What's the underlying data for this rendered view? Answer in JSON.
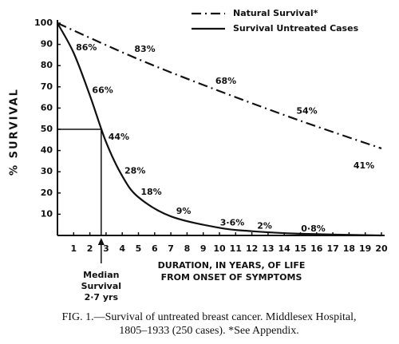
{
  "chart_data": {
    "type": "line",
    "ylabel": "% SURVIVAL",
    "xlabel": [
      "DURATION, IN YEARS, OF LIFE",
      "FROM ONSET OF SYMPTOMS"
    ],
    "caption": [
      "FIG. 1.—Survival of untreated breast cancer. Middlesex Hospital,",
      "1805–1933 (250 cases).  *See Appendix."
    ],
    "xlim": [
      0,
      20
    ],
    "xticks": [
      1,
      2,
      3,
      4,
      5,
      6,
      7,
      8,
      9,
      10,
      11,
      12,
      13,
      14,
      15,
      16,
      17,
      18,
      19,
      20
    ],
    "ylim": [
      0,
      100
    ],
    "yticks": [
      10,
      20,
      30,
      40,
      50,
      60,
      70,
      80,
      90,
      100
    ],
    "grid": false,
    "legend": "upper right",
    "series": [
      {
        "name": "Natural Survival*",
        "color": "#111111",
        "style": "dash-dot",
        "x": [
          0,
          5,
          10,
          15,
          20
        ],
        "values": [
          100,
          83,
          68,
          54,
          41
        ],
        "value_labels": [
          null,
          "83%",
          "68%",
          "54%",
          "41%"
        ]
      },
      {
        "name": "Survival Untreated Cases",
        "color": "#111111",
        "style": "solid",
        "x": [
          0,
          1,
          2,
          3,
          4,
          5,
          7,
          10,
          12,
          15,
          20
        ],
        "values": [
          100,
          86,
          66,
          44,
          28,
          18,
          9,
          3.6,
          2,
          0.8,
          0
        ],
        "value_labels": [
          null,
          "86%",
          "66%",
          "44%",
          "28%",
          "18%",
          "9%",
          "3·6%",
          "2%",
          "0·8%",
          null
        ]
      }
    ],
    "median": {
      "x": 2.7,
      "y": 50,
      "label": [
        "Median",
        "Survival",
        "2·7 yrs"
      ]
    }
  }
}
